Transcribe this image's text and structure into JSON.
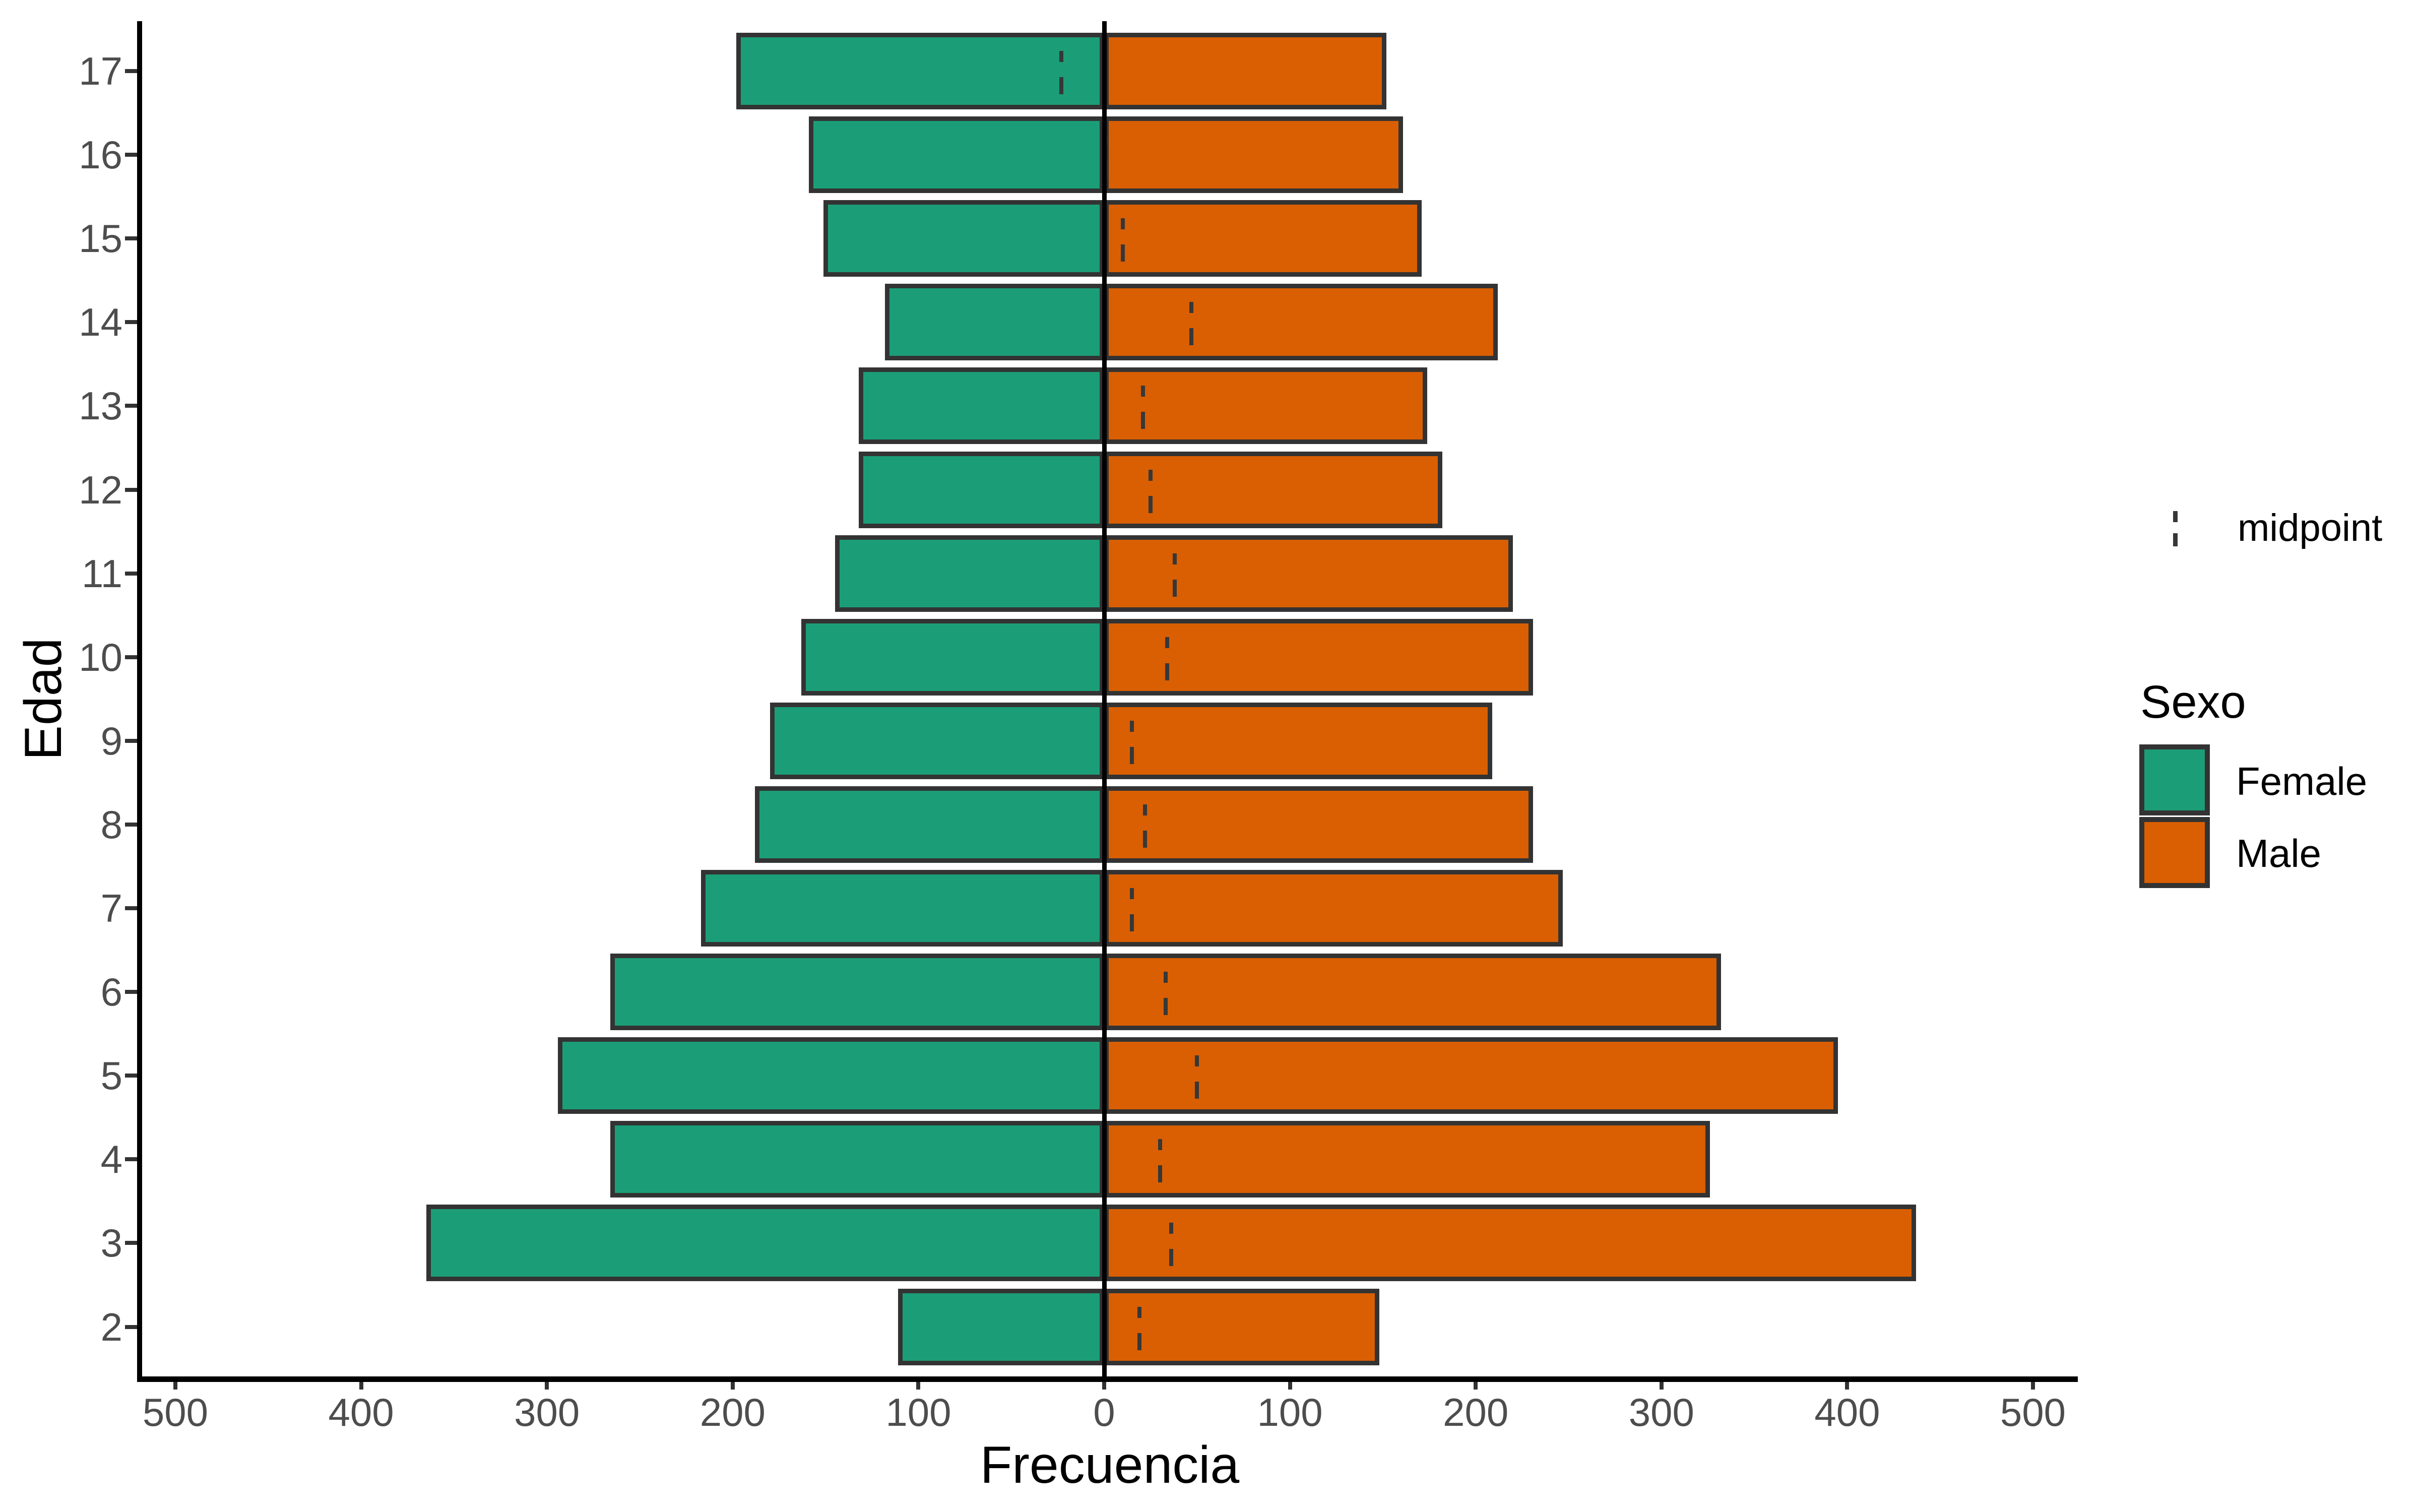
{
  "figure": {
    "xlabel": "Frecuencia",
    "ylabel": "Edad"
  },
  "legend": {
    "midpoint_label": "midpoint",
    "sexo_title": "Sexo",
    "entries": [
      {
        "label": "Female",
        "color": "#1B9E77"
      },
      {
        "label": "Male",
        "color": "#D95F02"
      }
    ],
    "position": "right"
  },
  "colors": {
    "female": "#1B9E77",
    "male": "#D95F02",
    "bar_border": "#333333",
    "midpoint_line": "#373737",
    "axis_line": "#000000",
    "zero_line": "#000000",
    "tick_text": "#4D4D4D",
    "title_text": "#000000",
    "background": "#FFFFFF"
  },
  "chart_data": {
    "type": "bar",
    "subtype": "population_pyramid",
    "title": "",
    "xlabel": "Frecuencia",
    "ylabel": "Edad",
    "grid": false,
    "legend_position": "right",
    "xlim": [
      -518,
      524
    ],
    "x_tick_values": [
      -500,
      -400,
      -300,
      -200,
      -100,
      0,
      100,
      200,
      300,
      400,
      500
    ],
    "x_tick_labels": [
      "500",
      "400",
      "300",
      "200",
      "100",
      "0",
      "100",
      "200",
      "300",
      "400",
      "500"
    ],
    "y_categories_top_to_bottom": [
      17,
      16,
      15,
      14,
      13,
      12,
      11,
      10,
      9,
      8,
      7,
      6,
      5,
      4,
      3,
      2
    ],
    "series": [
      {
        "name": "Female",
        "side": "left",
        "color": "#1B9E77",
        "values_by_row": [
          198,
          159,
          151,
          118,
          132,
          132,
          145,
          163,
          180,
          188,
          217,
          266,
          294,
          266,
          365,
          111
        ]
      },
      {
        "name": "Male",
        "side": "right",
        "color": "#D95F02",
        "values_by_row": [
          152,
          161,
          171,
          212,
          174,
          182,
          220,
          231,
          209,
          231,
          247,
          332,
          395,
          326,
          437,
          148
        ]
      }
    ],
    "rows": [
      {
        "edad": 17,
        "female": 198,
        "male": 152,
        "midpoint": -23
      },
      {
        "edad": 16,
        "female": 159,
        "male": 161,
        "midpoint": 1
      },
      {
        "edad": 15,
        "female": 151,
        "male": 171,
        "midpoint": 10
      },
      {
        "edad": 14,
        "female": 118,
        "male": 212,
        "midpoint": 47
      },
      {
        "edad": 13,
        "female": 132,
        "male": 174,
        "midpoint": 21
      },
      {
        "edad": 12,
        "female": 132,
        "male": 182,
        "midpoint": 25
      },
      {
        "edad": 11,
        "female": 145,
        "male": 220,
        "midpoint": 38
      },
      {
        "edad": 10,
        "female": 163,
        "male": 231,
        "midpoint": 34
      },
      {
        "edad": 9,
        "female": 180,
        "male": 209,
        "midpoint": 15
      },
      {
        "edad": 8,
        "female": 188,
        "male": 231,
        "midpoint": 22
      },
      {
        "edad": 7,
        "female": 217,
        "male": 247,
        "midpoint": 15
      },
      {
        "edad": 6,
        "female": 266,
        "male": 332,
        "midpoint": 33
      },
      {
        "edad": 5,
        "female": 294,
        "male": 395,
        "midpoint": 50
      },
      {
        "edad": 4,
        "female": 266,
        "male": 326,
        "midpoint": 30
      },
      {
        "edad": 3,
        "female": 365,
        "male": 437,
        "midpoint": 36
      },
      {
        "edad": 2,
        "female": 111,
        "male": 148,
        "midpoint": 19
      }
    ]
  }
}
